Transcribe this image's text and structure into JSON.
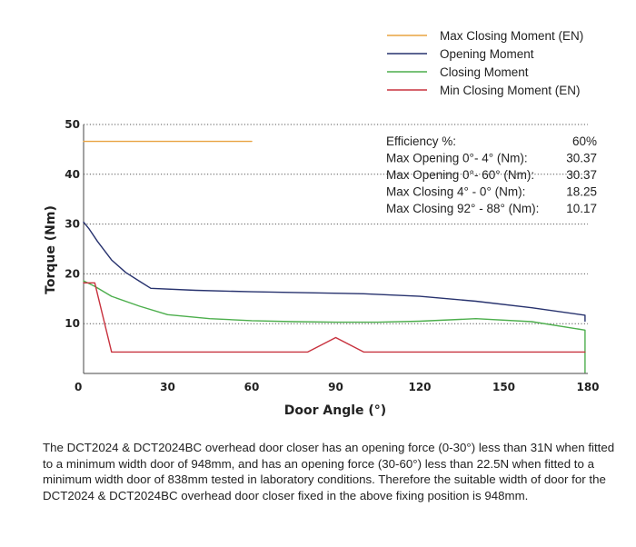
{
  "chart_data": {
    "type": "line",
    "title": "",
    "xlabel": "Door Angle (°)",
    "ylabel": "Torque (Nm)",
    "xlim": [
      0,
      180
    ],
    "ylim": [
      0,
      50
    ],
    "xticks": [
      0,
      30,
      60,
      90,
      120,
      150,
      180
    ],
    "yticks": [
      10,
      20,
      30,
      40,
      50
    ],
    "grid": "horizontal-dotted",
    "legend_position": "top-right",
    "series": [
      {
        "name": "Max Closing Moment (EN)",
        "color": "#e8a341",
        "x": [
          0,
          60
        ],
        "y": [
          46.6,
          46.6
        ]
      },
      {
        "name": "Opening Moment",
        "color": "#27326e",
        "x": [
          0,
          2,
          5,
          10,
          15,
          20,
          24,
          40,
          60,
          80,
          100,
          120,
          140,
          160,
          179,
          179
        ],
        "y": [
          30.4,
          29,
          26.5,
          22.8,
          20.3,
          18.5,
          17.1,
          16.7,
          16.4,
          16.2,
          16.0,
          15.5,
          14.5,
          13.2,
          11.7,
          10.5
        ]
      },
      {
        "name": "Closing Moment",
        "color": "#4cae4c",
        "x": [
          0,
          4,
          10,
          20,
          30,
          45,
          60,
          75,
          90,
          105,
          120,
          140,
          160,
          179,
          179
        ],
        "y": [
          18.6,
          17.5,
          15.5,
          13.5,
          11.8,
          11.0,
          10.6,
          10.4,
          10.3,
          10.3,
          10.5,
          11.0,
          10.4,
          8.7,
          0.2
        ]
      },
      {
        "name": "Min Closing Moment (EN)",
        "color": "#c8323e",
        "x": [
          0,
          4,
          10,
          80,
          90,
          100,
          179
        ],
        "y": [
          18.2,
          18.2,
          4.3,
          4.3,
          7.2,
          4.3,
          4.3
        ]
      }
    ],
    "annotations": [
      {
        "label": "Efficiency %:",
        "value": "60%"
      },
      {
        "label": "Max Opening 0°- 4° (Nm):",
        "value": "30.37"
      },
      {
        "label": "Max Opening 0°- 60° (Nm):",
        "value": "30.37"
      },
      {
        "label": "Max Closing 4° - 0° (Nm):",
        "value": "18.25"
      },
      {
        "label": "Max Closing 92° - 88° (Nm):",
        "value": "10.17"
      }
    ]
  },
  "caption": "The DCT2024 & DCT2024BC overhead door closer has an opening force (0-30°) less than 31N when fitted to a minimum width door of 948mm, and has an opening force (30-60°) less than 22.5N when fitted to a minimum width door of 838mm tested in laboratory conditions. Therefore the suitable width of door for the DCT2024 & DCT2024BC overhead door closer fixed in the above fixing position is 948mm."
}
